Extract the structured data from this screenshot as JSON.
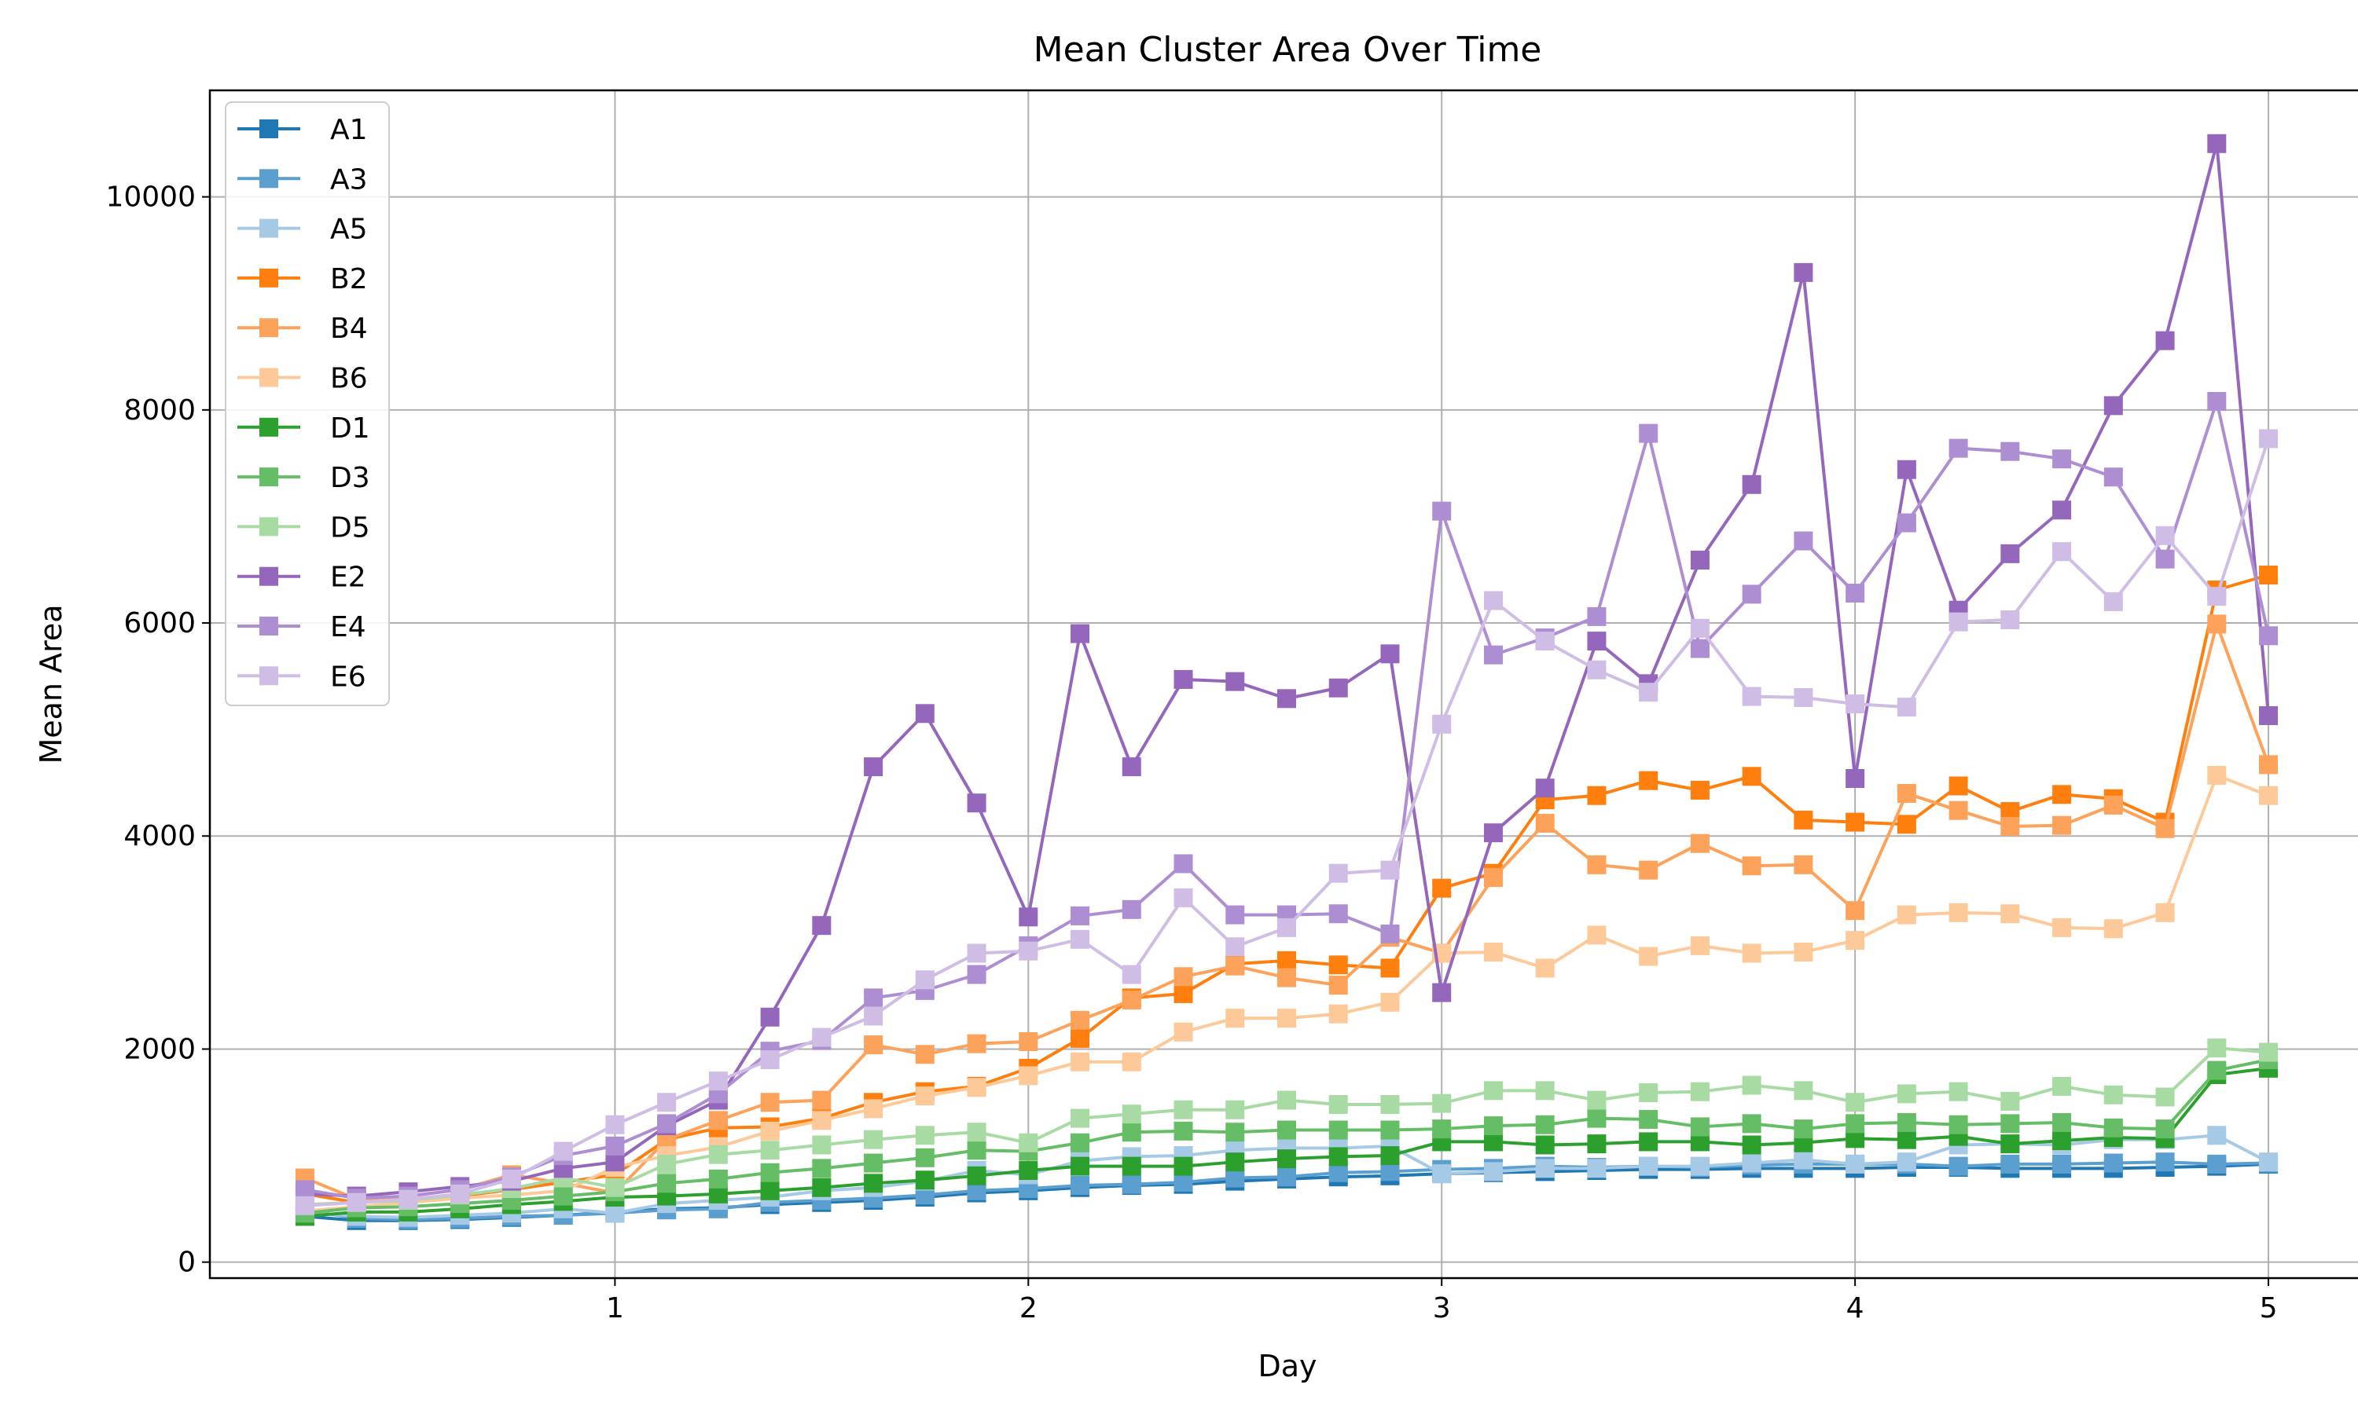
{
  "chart_data": {
    "type": "line",
    "title": "Mean Cluster Area Over Time",
    "xlabel": "Day",
    "ylabel": "Mean Area",
    "xlim": [
      0.02,
      5.23
    ],
    "ylim": [
      -150,
      11000
    ],
    "xticks": [
      1,
      2,
      3,
      4,
      5
    ],
    "xtick_labels": [
      "1",
      "2",
      "3",
      "4",
      "5"
    ],
    "yticks": [
      0,
      2000,
      4000,
      6000,
      8000,
      10000
    ],
    "ytick_labels": [
      "0",
      "2000",
      "4000",
      "6000",
      "8000",
      "10000"
    ],
    "grid": true,
    "legend_position": "upper-left",
    "marker": "square",
    "x": [
      0.25,
      0.375,
      0.5,
      0.625,
      0.75,
      0.875,
      1.0,
      1.125,
      1.25,
      1.375,
      1.5,
      1.625,
      1.75,
      1.875,
      2.0,
      2.125,
      2.25,
      2.375,
      2.5,
      2.625,
      2.75,
      2.875,
      3.0,
      3.125,
      3.25,
      3.375,
      3.5,
      3.625,
      3.75,
      3.875,
      4.0,
      4.125,
      4.25,
      4.375,
      4.5,
      4.625,
      4.75,
      4.875,
      5.0
    ],
    "series": [
      {
        "name": "A1",
        "color": "#1f77b4",
        "values": [
          430,
          390,
          390,
          400,
          420,
          440,
          470,
          500,
          510,
          540,
          560,
          580,
          610,
          650,
          670,
          700,
          720,
          730,
          760,
          780,
          800,
          810,
          830,
          840,
          850,
          860,
          870,
          870,
          880,
          880,
          880,
          890,
          890,
          880,
          880,
          880,
          890,
          900,
          920
        ]
      },
      {
        "name": "A3",
        "color": "#5b9fd0",
        "values": [
          490,
          410,
          400,
          410,
          430,
          440,
          460,
          490,
          500,
          560,
          580,
          600,
          630,
          670,
          690,
          720,
          730,
          750,
          790,
          800,
          840,
          850,
          870,
          880,
          900,
          890,
          900,
          890,
          910,
          920,
          920,
          920,
          900,
          920,
          920,
          930,
          940,
          920,
          930
        ]
      },
      {
        "name": "A5",
        "color": "#a6c9e5",
        "values": [
          470,
          430,
          420,
          440,
          460,
          500,
          460,
          550,
          580,
          610,
          670,
          700,
          760,
          860,
          820,
          950,
          990,
          1000,
          1050,
          1070,
          1070,
          1090,
          830,
          850,
          880,
          880,
          900,
          900,
          930,
          960,
          920,
          940,
          1100,
          1110,
          1100,
          1150,
          1150,
          1190,
          940
        ]
      },
      {
        "name": "B2",
        "color": "#ff7f0e",
        "values": [
          640,
          560,
          590,
          620,
          680,
          750,
          820,
          1150,
          1260,
          1270,
          1350,
          1500,
          1600,
          1650,
          1820,
          2100,
          2480,
          2520,
          2800,
          2830,
          2790,
          2760,
          3510,
          3650,
          4340,
          4380,
          4520,
          4430,
          4560,
          4150,
          4130,
          4110,
          4470,
          4230,
          4390,
          4350,
          4130,
          6310,
          6450
        ]
      },
      {
        "name": "B4",
        "color": "#fda25a",
        "values": [
          790,
          590,
          620,
          680,
          820,
          740,
          650,
          1150,
          1330,
          1500,
          1520,
          2040,
          1950,
          2050,
          2070,
          2270,
          2460,
          2680,
          2780,
          2670,
          2600,
          3050,
          2900,
          3610,
          4120,
          3730,
          3680,
          3930,
          3720,
          3730,
          3300,
          4400,
          4240,
          4090,
          4100,
          4290,
          4070,
          5990,
          4670
        ]
      },
      {
        "name": "B6",
        "color": "#fdc999",
        "values": [
          480,
          520,
          560,
          600,
          630,
          670,
          890,
          1000,
          1080,
          1230,
          1330,
          1440,
          1560,
          1640,
          1750,
          1880,
          1880,
          2160,
          2290,
          2290,
          2330,
          2440,
          2900,
          2910,
          2760,
          3070,
          2870,
          2970,
          2900,
          2910,
          3020,
          3260,
          3280,
          3270,
          3140,
          3130,
          3280,
          4570,
          4380
        ]
      },
      {
        "name": "D1",
        "color": "#2ca02c",
        "values": [
          430,
          470,
          470,
          500,
          540,
          570,
          610,
          620,
          640,
          670,
          700,
          740,
          770,
          810,
          860,
          900,
          900,
          900,
          940,
          970,
          990,
          1000,
          1130,
          1130,
          1100,
          1110,
          1130,
          1130,
          1100,
          1120,
          1160,
          1150,
          1180,
          1110,
          1140,
          1170,
          1160,
          1760,
          1820
        ]
      },
      {
        "name": "D3",
        "color": "#65bd65",
        "values": [
          460,
          510,
          520,
          550,
          580,
          620,
          660,
          740,
          780,
          840,
          880,
          930,
          980,
          1050,
          1040,
          1120,
          1220,
          1230,
          1220,
          1240,
          1240,
          1240,
          1250,
          1280,
          1290,
          1350,
          1340,
          1270,
          1300,
          1250,
          1300,
          1310,
          1290,
          1300,
          1310,
          1260,
          1250,
          1800,
          1900
        ]
      },
      {
        "name": "D5",
        "color": "#a8dba3",
        "values": [
          540,
          560,
          580,
          630,
          690,
          790,
          700,
          920,
          1010,
          1050,
          1100,
          1150,
          1190,
          1220,
          1120,
          1350,
          1390,
          1430,
          1430,
          1520,
          1480,
          1480,
          1490,
          1610,
          1610,
          1520,
          1590,
          1600,
          1660,
          1610,
          1500,
          1580,
          1600,
          1510,
          1650,
          1570,
          1550,
          2010,
          1970
        ]
      },
      {
        "name": "E2",
        "color": "#9467bd",
        "values": [
          640,
          620,
          660,
          710,
          760,
          880,
          940,
          1280,
          1520,
          2300,
          3160,
          4650,
          5150,
          4310,
          3240,
          5900,
          4650,
          5470,
          5450,
          5290,
          5390,
          5710,
          2530,
          4030,
          4450,
          5830,
          5430,
          6590,
          7300,
          9290,
          4540,
          7440,
          6120,
          6650,
          7060,
          8040,
          8650,
          10500,
          5130
        ]
      },
      {
        "name": "E4",
        "color": "#ae8ed2",
        "values": [
          680,
          600,
          620,
          680,
          800,
          1000,
          1090,
          1300,
          1580,
          1980,
          2080,
          2480,
          2550,
          2700,
          2970,
          3250,
          3310,
          3740,
          3260,
          3260,
          3270,
          3080,
          7050,
          5700,
          5860,
          6060,
          7780,
          5760,
          6270,
          6770,
          6280,
          6940,
          7640,
          7610,
          7540,
          7370,
          6600,
          8080,
          5880
        ]
      },
      {
        "name": "E6",
        "color": "#cfbde5",
        "values": [
          530,
          560,
          590,
          640,
          780,
          1040,
          1290,
          1500,
          1700,
          1900,
          2110,
          2310,
          2650,
          2900,
          2920,
          3030,
          2700,
          3420,
          2960,
          3140,
          3650,
          3680,
          5050,
          6210,
          5830,
          5560,
          5350,
          5950,
          5310,
          5300,
          5240,
          5210,
          6010,
          6030,
          6670,
          6200,
          6820,
          6250,
          7730
        ]
      }
    ]
  }
}
